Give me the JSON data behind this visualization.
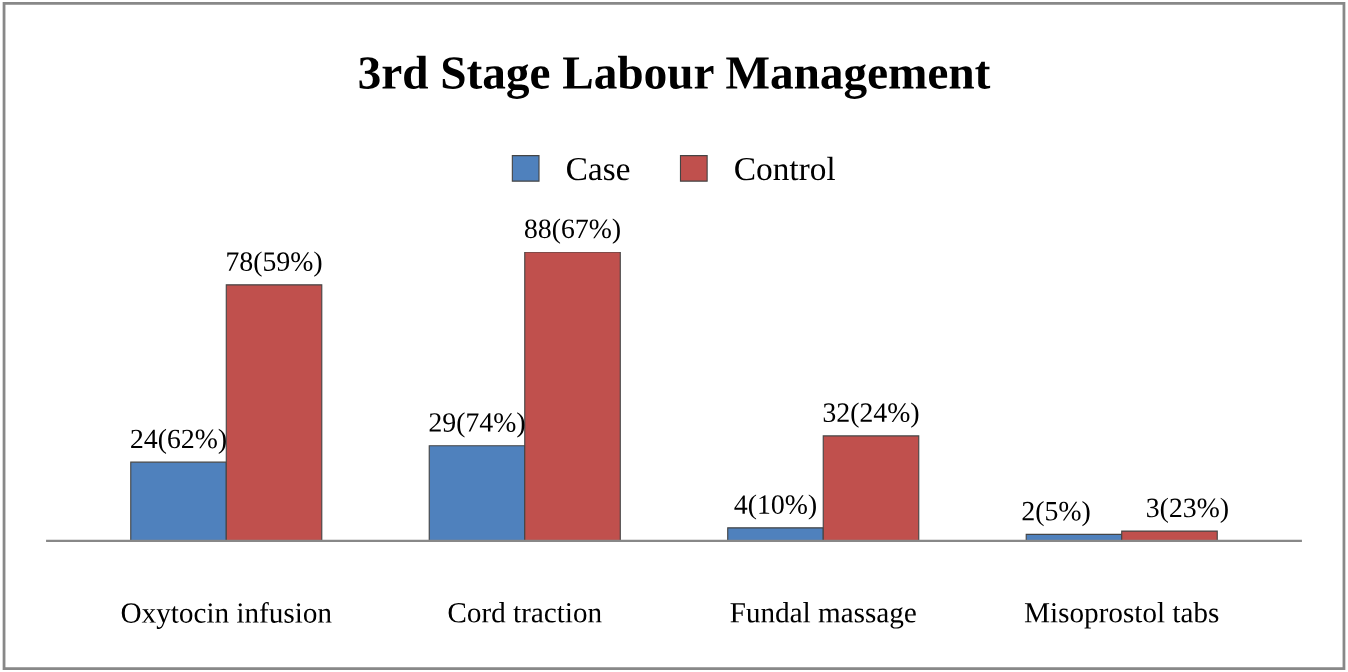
{
  "chart_data": {
    "type": "bar",
    "title": "3rd Stage Labour Management",
    "categories": [
      "Oxytocin infusion",
      "Cord traction",
      "Fundal massage",
      "Misoprostol tabs"
    ],
    "series": [
      {
        "name": "Case",
        "color": "#4f81bd",
        "values": [
          24,
          29,
          4,
          2
        ],
        "value_labels": [
          "24(62%)",
          "29(74%)",
          "4(10%)",
          "2(5%)"
        ]
      },
      {
        "name": "Control",
        "color": "#c0504d",
        "values": [
          78,
          88,
          32,
          3
        ],
        "value_labels": [
          "78(59%)",
          "88(67%)",
          "32(24%)",
          "3(23%)"
        ]
      }
    ],
    "legend": "top",
    "grid": false
  }
}
